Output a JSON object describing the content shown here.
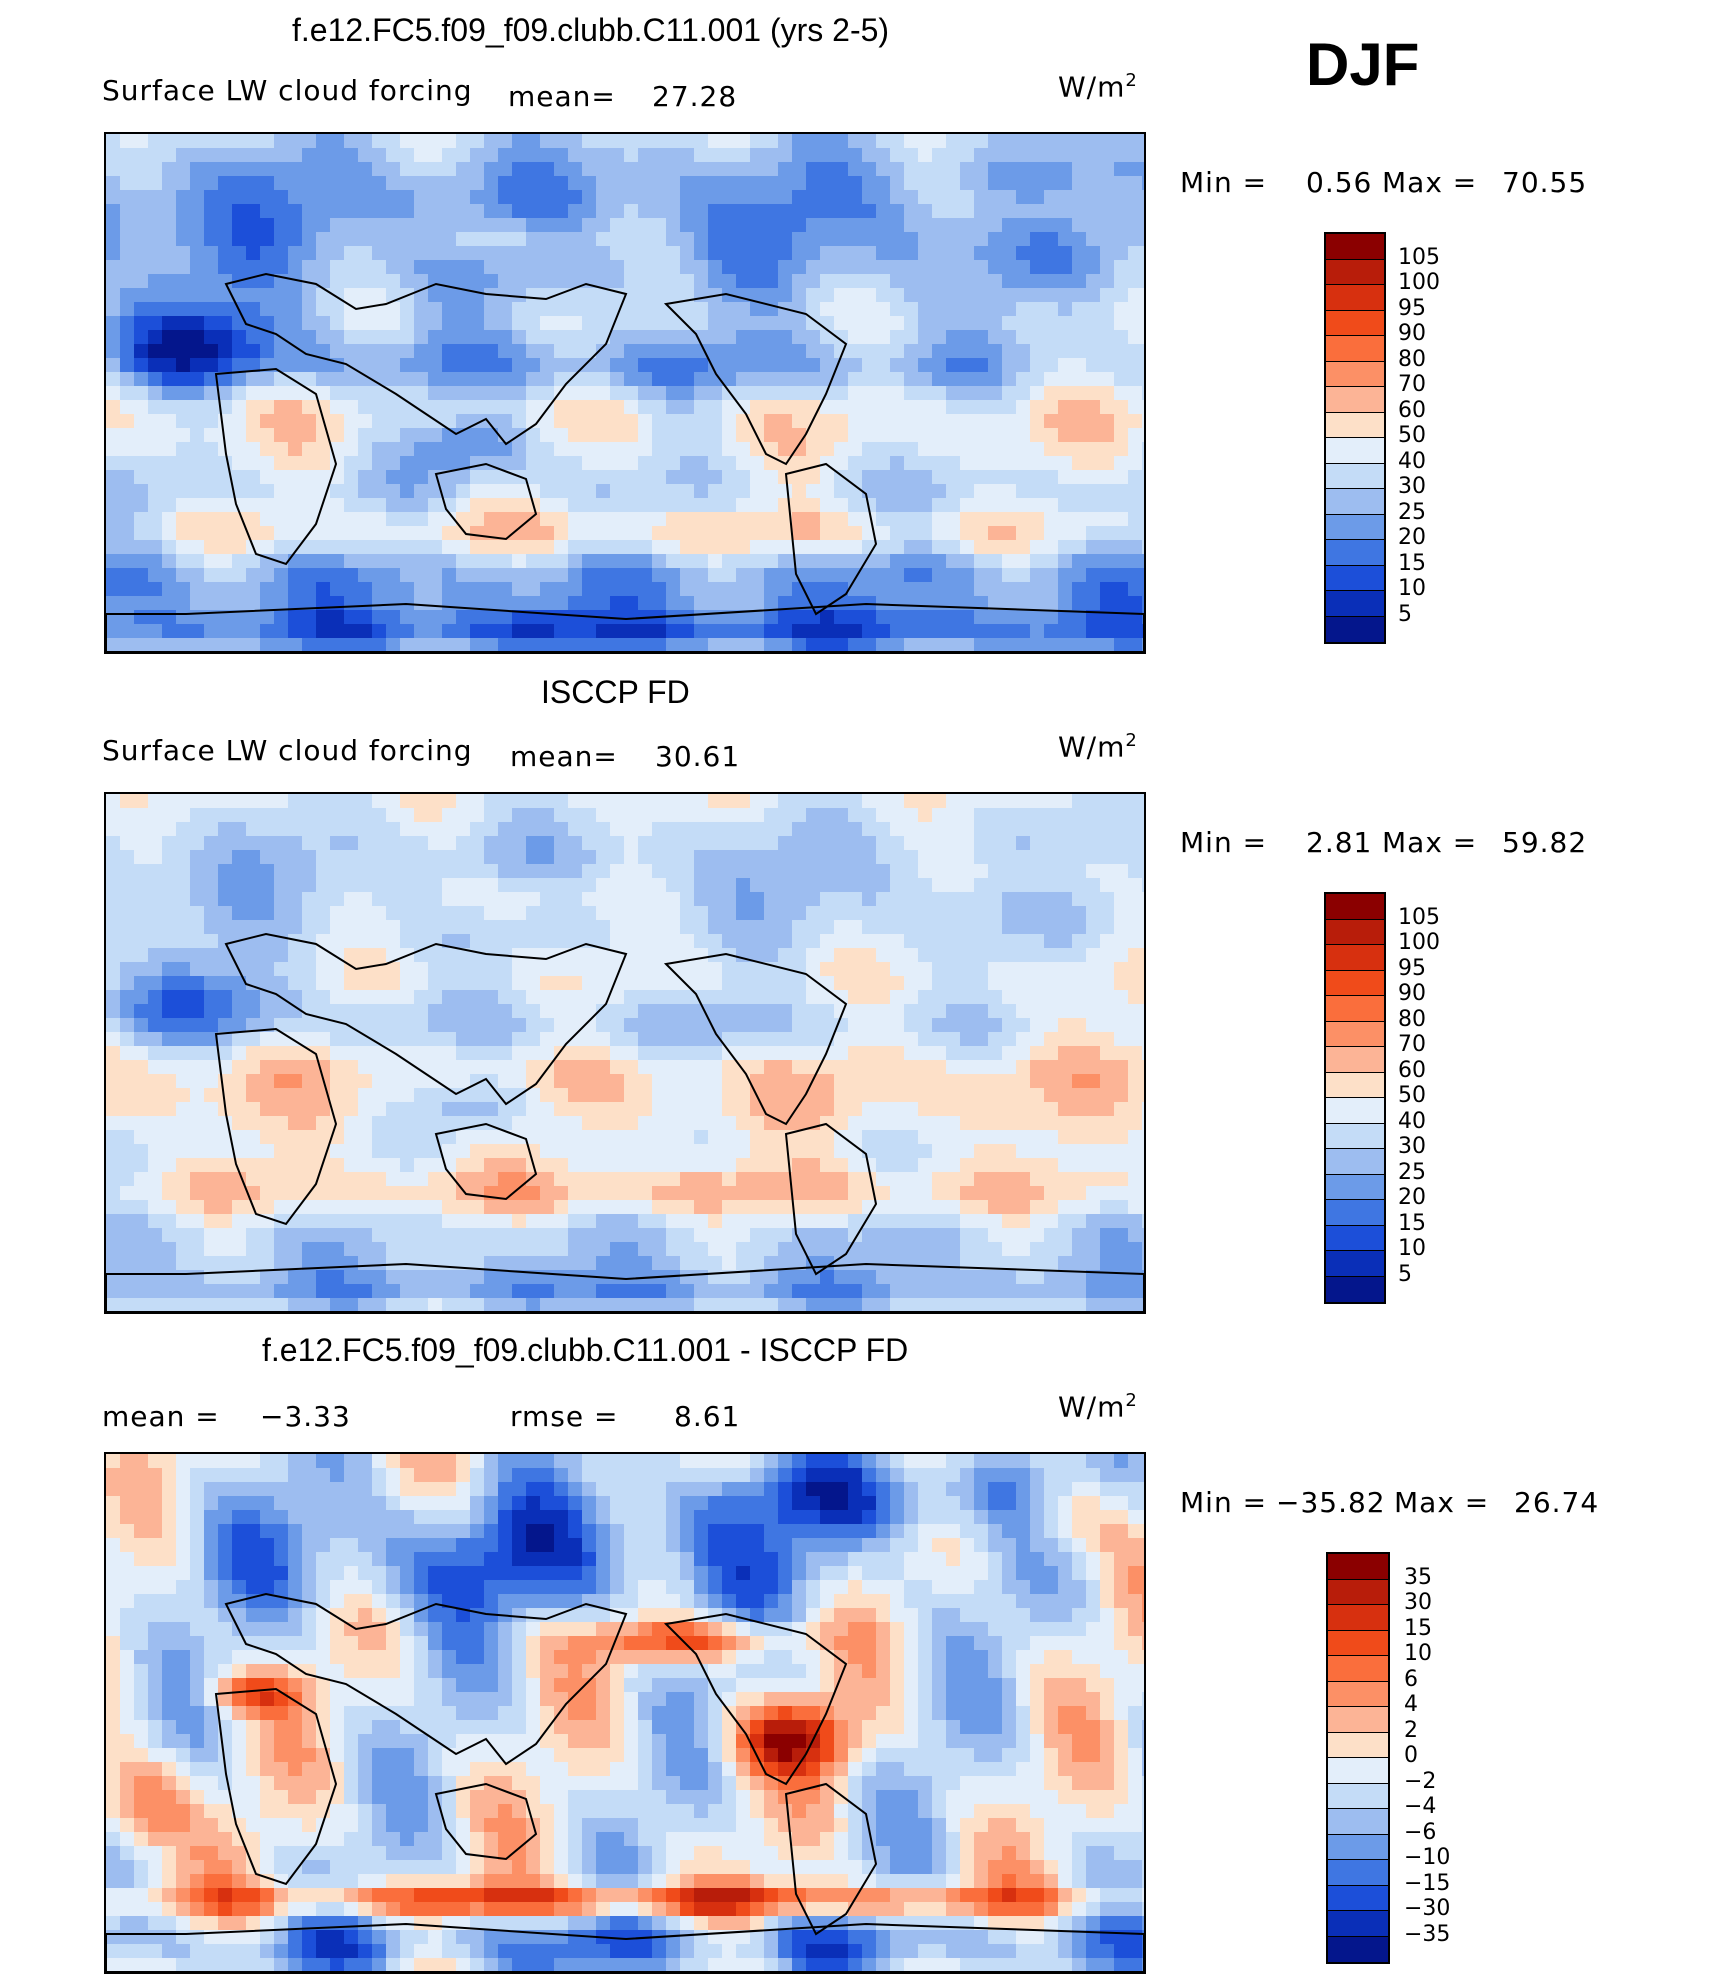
{
  "season": "DJF",
  "units": "W/m",
  "units_sup": "2",
  "panels": [
    {
      "title": "f.e12.FC5.f09_f09.clubb.C11.001 (yrs 2-5)",
      "left_label": "Surface LW cloud forcing",
      "stat1_label": "mean=",
      "stat1_value": "27.28",
      "min_label": "Min =",
      "min_value": "0.56",
      "max_label": "Max =",
      "max_value": "70.55",
      "colorbar_labels": [
        "105",
        "100",
        "95",
        "90",
        "80",
        "70",
        "60",
        "50",
        "40",
        "30",
        "25",
        "20",
        "15",
        "10",
        "5"
      ],
      "colorbar_colors": [
        "#8b0000",
        "#b81d0a",
        "#d7300f",
        "#f04b1a",
        "#fa6e3c",
        "#fc9066",
        "#fcb496",
        "#fde0c8",
        "#e3eefa",
        "#c4dcf7",
        "#9dbdf0",
        "#6c9be8",
        "#3f76e2",
        "#1c4fd9",
        "#0a2fb8",
        "#04168c"
      ],
      "field": "model"
    },
    {
      "title": "ISCCP FD",
      "left_label": "Surface LW cloud forcing",
      "stat1_label": "mean=",
      "stat1_value": "30.61",
      "min_label": "Min =",
      "min_value": "2.81",
      "max_label": "Max =",
      "max_value": "59.82",
      "colorbar_labels": [
        "105",
        "100",
        "95",
        "90",
        "80",
        "70",
        "60",
        "50",
        "40",
        "30",
        "25",
        "20",
        "15",
        "10",
        "5"
      ],
      "colorbar_colors": [
        "#8b0000",
        "#b81d0a",
        "#d7300f",
        "#f04b1a",
        "#fa6e3c",
        "#fc9066",
        "#fcb496",
        "#fde0c8",
        "#e3eefa",
        "#c4dcf7",
        "#9dbdf0",
        "#6c9be8",
        "#3f76e2",
        "#1c4fd9",
        "#0a2fb8",
        "#04168c"
      ],
      "field": "obs"
    },
    {
      "title": "f.e12.FC5.f09_f09.clubb.C11.001 - ISCCP FD",
      "stat1_label": "mean =",
      "stat1_value": "−3.33",
      "stat2_label": "rmse =",
      "stat2_value": "8.61",
      "min_label": "Min =",
      "min_value": "−35.82",
      "max_label": "Max =",
      "max_value": "26.74",
      "colorbar_labels": [
        "35",
        "30",
        "15",
        "10",
        "6",
        "4",
        "2",
        "0",
        "−2",
        "−4",
        "−6",
        "−10",
        "−15",
        "−30",
        "−35"
      ],
      "colorbar_colors": [
        "#8b0000",
        "#b81d0a",
        "#d7300f",
        "#f04b1a",
        "#fa6e3c",
        "#fc9066",
        "#fcb496",
        "#fde0c8",
        "#e3eefa",
        "#c4dcf7",
        "#9dbdf0",
        "#6c9be8",
        "#3f76e2",
        "#1c4fd9",
        "#0a2fb8",
        "#04168c"
      ],
      "field": "diff"
    }
  ]
}
